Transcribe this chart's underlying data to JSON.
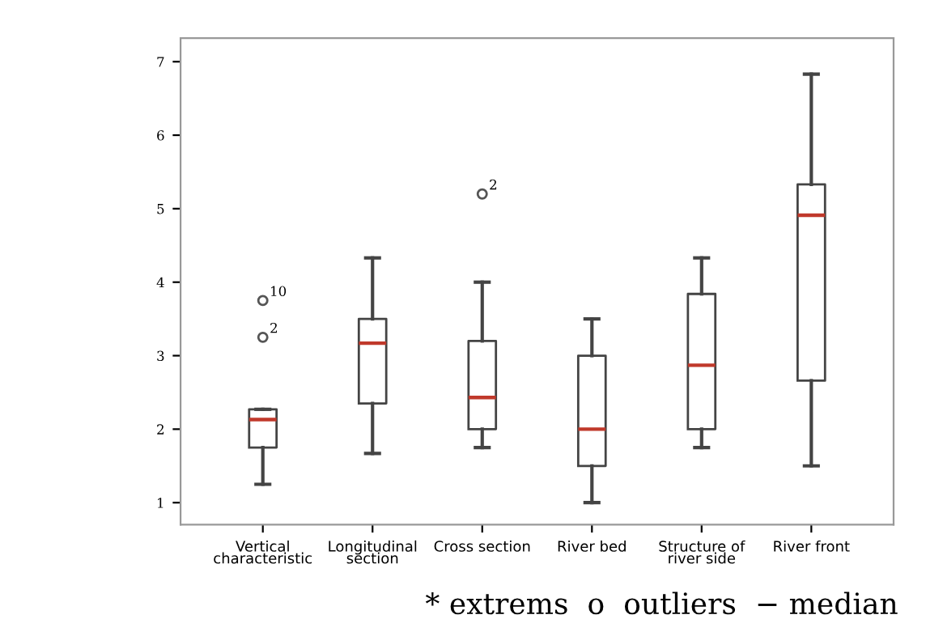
{
  "chart_data": {
    "type": "box",
    "categories": [
      "Vertical\ncharacteristic",
      "Longitudinal\nsection",
      "Cross section",
      "River bed",
      "Structure of\nriver side",
      "River front"
    ],
    "boxes": [
      {
        "low": 1.25,
        "q1": 1.75,
        "median": 2.13,
        "q3": 2.27,
        "high": 2.27,
        "outliers": [
          3.25,
          3.75
        ]
      },
      {
        "low": 1.67,
        "q1": 2.35,
        "median": 3.17,
        "q3": 3.5,
        "high": 4.33
      },
      {
        "low": 1.75,
        "q1": 2.0,
        "median": 2.43,
        "q3": 3.2,
        "high": 4.0,
        "outliers": [
          5.2
        ]
      },
      {
        "low": 1.0,
        "q1": 1.5,
        "median": 2.0,
        "q3": 3.0,
        "high": 3.5
      },
      {
        "low": 1.75,
        "q1": 2.0,
        "median": 2.87,
        "q3": 3.84,
        "high": 4.33
      },
      {
        "low": 1.5,
        "q1": 2.66,
        "median": 4.91,
        "q3": 5.33,
        "high": 6.83
      }
    ],
    "color": "#444444",
    "ylim": [
      0.7,
      7.32
    ],
    "yticks": [
      1,
      2,
      3,
      4,
      5,
      6,
      7
    ],
    "grid": false,
    "annotations": [
      "2",
      "10",
      "2",
      "* extrems  o  outliers  − median"
    ]
  }
}
